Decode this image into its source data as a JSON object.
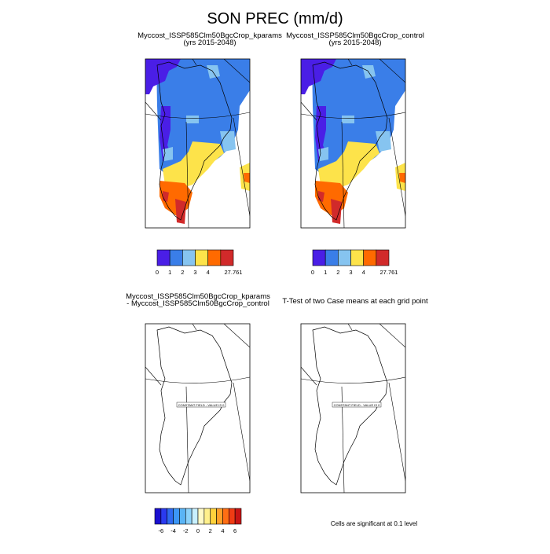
{
  "title": "SON PREC (mm/d)",
  "panels": [
    {
      "title_lines": [
        "Myccost_ISSP585Clm50BgcCrop_kparams",
        "(yrs 2015-2048)"
      ]
    },
    {
      "title_lines": [
        "Myccost_ISSP585Clm50BgcCrop_control",
        "(yrs 2015-2048)"
      ]
    },
    {
      "title_lines": [
        "Myccost_ISSP585Clm50BgcCrop_kparams",
        "- Myccost_ISSP585Clm50BgcCrop_control"
      ],
      "field_label": "CONSTANT FIELD - VALUE IS 0"
    },
    {
      "title_lines": [
        "T-Test of two Case means at each grid point"
      ],
      "field_label": "CONSTANT FIELD - VALUE IS 0"
    }
  ],
  "colorbars": [
    {
      "labels": [
        "0",
        "1",
        "2",
        "3",
        "4",
        "27.761"
      ],
      "colors": [
        "#4a1ee6",
        "#3a7ee8",
        "#86c4f0",
        "#fde34a",
        "#ff6a00",
        "#d12a2a"
      ]
    },
    {
      "labels": [
        "0",
        "1",
        "2",
        "3",
        "4",
        "27.761"
      ],
      "colors": [
        "#4a1ee6",
        "#3a7ee8",
        "#86c4f0",
        "#fde34a",
        "#ff6a00",
        "#d12a2a"
      ]
    },
    {
      "labels": [
        "-6",
        "-4",
        "-2",
        "0",
        "2",
        "4",
        "6"
      ],
      "colors": [
        "#1a0fd0",
        "#2a3af0",
        "#2f6af0",
        "#3c96f5",
        "#5ab4f5",
        "#8cd2fa",
        "#c8f0ff",
        "#fffac8",
        "#fff08c",
        "#ffd23c",
        "#ffa028",
        "#ff6e14",
        "#f03c14",
        "#c81414"
      ]
    }
  ],
  "note": "Cells are significant at 0.1 level"
}
